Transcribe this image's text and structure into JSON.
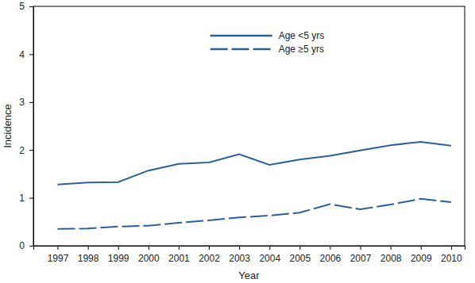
{
  "chart_data": {
    "type": "line",
    "x_label": "Year",
    "y_label": "Incidence",
    "x": [
      1997,
      1998,
      1999,
      2000,
      2001,
      2002,
      2003,
      2004,
      2005,
      2006,
      2007,
      2008,
      2009,
      2010
    ],
    "series": [
      {
        "name": "Age <5 yrs",
        "color": "#2b5f9e",
        "line_style": "solid",
        "values": [
          1.28,
          1.32,
          1.33,
          1.57,
          1.71,
          1.74,
          1.91,
          1.69,
          1.8,
          1.88,
          1.99,
          2.1,
          2.17,
          2.09
        ]
      },
      {
        "name": "Age ≥5 yrs",
        "color": "#2b5f9e",
        "line_style": "dashed",
        "values": [
          0.35,
          0.36,
          0.4,
          0.42,
          0.48,
          0.53,
          0.59,
          0.63,
          0.69,
          0.87,
          0.76,
          0.86,
          0.98,
          0.91
        ]
      }
    ],
    "xlim": [
      1996.2,
      2010.45
    ],
    "xticks": [
      1997,
      1998,
      1999,
      2000,
      2001,
      2002,
      2003,
      2004,
      2005,
      2006,
      2007,
      2008,
      2009,
      2010
    ],
    "ylim": [
      0,
      5
    ],
    "yticks": [
      0,
      1,
      2,
      3,
      4,
      5
    ],
    "grid": false,
    "legend": "top"
  }
}
